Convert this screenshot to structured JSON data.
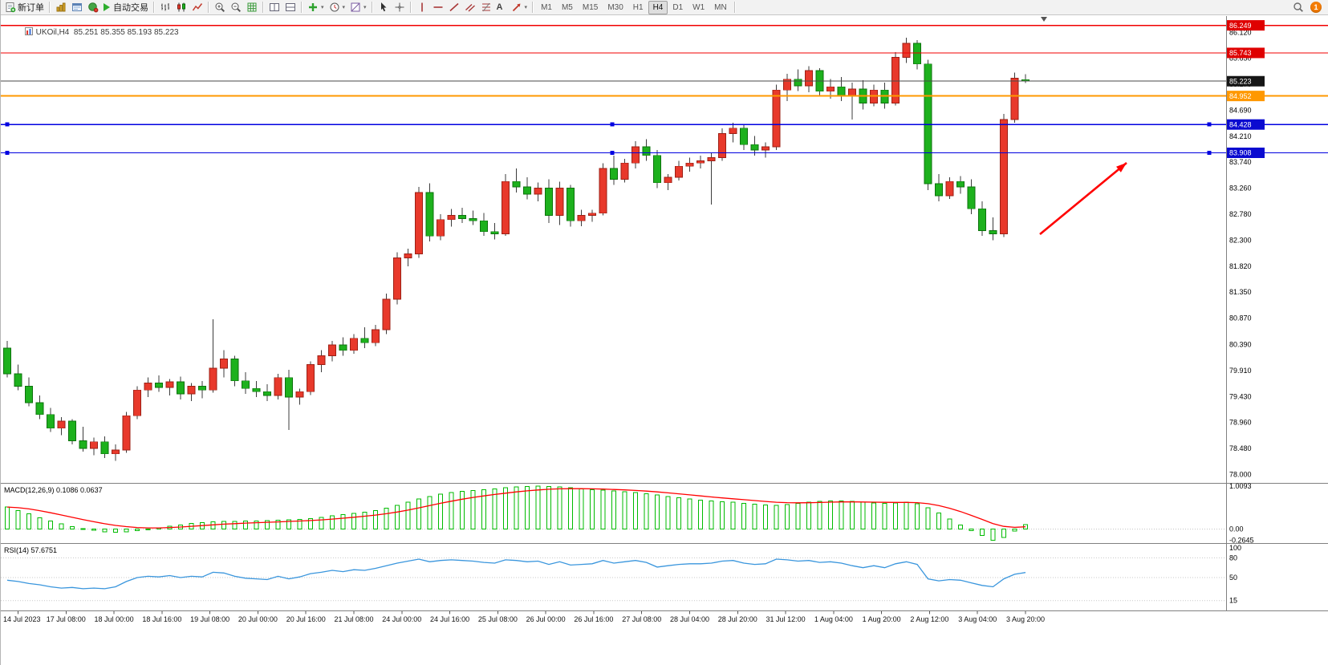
{
  "toolbar": {
    "new_order": "新订单",
    "autotrade": "自动交易",
    "timeframes": [
      "M1",
      "M5",
      "M15",
      "M30",
      "H1",
      "H4",
      "D1",
      "W1",
      "MN"
    ],
    "active_timeframe": "H4",
    "notification_count": "1"
  },
  "icons": {
    "dropdown_arrow": "▾"
  },
  "chart": {
    "header_text": "UKOil,H4  85.251 85.355 85.193 85.223"
  },
  "chart_data": {
    "type": "candlestick",
    "symbol": "UKOil",
    "timeframe": "H4",
    "ohlc_current": {
      "open": 85.251,
      "high": 85.355,
      "low": 85.193,
      "close": 85.223
    },
    "up_color": "#e8392b",
    "down_color": "#1db11d",
    "up_stroke": "#9c2015",
    "down_stroke": "#0d720d",
    "wick_color": "#3c3c3c",
    "price_axis_labels": [
      "86.120",
      "85.650",
      "85.170",
      "84.690",
      "84.210",
      "83.740",
      "83.260",
      "82.780",
      "82.300",
      "81.820",
      "81.350",
      "80.870",
      "80.390",
      "79.910",
      "79.430",
      "78.960",
      "78.480",
      "78.000"
    ],
    "x_labels": [
      "14 Jul 2023",
      "17 Jul 08:00",
      "18 Jul 00:00",
      "18 Jul 16:00",
      "19 Jul 08:00",
      "20 Jul 00:00",
      "20 Jul 16:00",
      "21 Jul 08:00",
      "24 Jul 00:00",
      "24 Jul 16:00",
      "25 Jul 08:00",
      "26 Jul 00:00",
      "26 Jul 16:00",
      "27 Jul 08:00",
      "28 Jul 04:00",
      "28 Jul 20:00",
      "31 Jul 12:00",
      "1 Aug 04:00",
      "1 Aug 20:00",
      "2 Aug 12:00",
      "3 Aug 04:00",
      "3 Aug 20:00"
    ],
    "levels": [
      {
        "price": 86.249,
        "label": "86.249",
        "color": "#f00000",
        "badge": "#df0000",
        "width": 1.4,
        "handles": false
      },
      {
        "price": 85.743,
        "label": "85.743",
        "color": "#f00000",
        "badge": "#df0000",
        "width": 1.4,
        "handles": false
      },
      {
        "price": 84.952,
        "label": "84.952",
        "color": "#ff9800",
        "badge": "#ff9800",
        "width": 2,
        "handles": false
      },
      {
        "price": 84.428,
        "label": "84.428",
        "color": "#0000e0",
        "badge": "#0a0ad0",
        "width": 1.4,
        "handles": true
      },
      {
        "price": 83.908,
        "label": "83.908",
        "color": "#0000e0",
        "badge": "#0a0ad0",
        "width": 1.4,
        "handles": true
      }
    ],
    "current_price": {
      "price": 85.223,
      "label": "85.223",
      "badge": "#161616",
      "line_color": "#4a4a4a"
    },
    "candles": [
      [
        80.32,
        80.45,
        79.78,
        79.85
      ],
      [
        79.85,
        80.02,
        79.55,
        79.62
      ],
      [
        79.62,
        79.78,
        79.25,
        79.32
      ],
      [
        79.32,
        79.45,
        79.02,
        79.1
      ],
      [
        79.1,
        79.22,
        78.78,
        78.85
      ],
      [
        78.85,
        79.05,
        78.72,
        78.98
      ],
      [
        78.98,
        79.02,
        78.55,
        78.62
      ],
      [
        78.62,
        78.88,
        78.42,
        78.48
      ],
      [
        78.48,
        78.68,
        78.35,
        78.6
      ],
      [
        78.6,
        78.7,
        78.3,
        78.38
      ],
      [
        78.38,
        78.55,
        78.25,
        78.45
      ],
      [
        78.45,
        79.15,
        78.4,
        79.08
      ],
      [
        79.08,
        79.62,
        79.02,
        79.55
      ],
      [
        79.55,
        79.78,
        79.42,
        79.68
      ],
      [
        79.68,
        79.82,
        79.52,
        79.6
      ],
      [
        79.6,
        79.75,
        79.45,
        79.7
      ],
      [
        79.7,
        79.8,
        79.38,
        79.48
      ],
      [
        79.48,
        79.68,
        79.35,
        79.62
      ],
      [
        79.62,
        79.72,
        79.4,
        79.55
      ],
      [
        79.55,
        80.85,
        79.5,
        79.95
      ],
      [
        79.95,
        80.28,
        79.78,
        80.12
      ],
      [
        80.12,
        80.18,
        79.62,
        79.72
      ],
      [
        79.72,
        79.88,
        79.48,
        79.58
      ],
      [
        79.58,
        79.72,
        79.42,
        79.52
      ],
      [
        79.52,
        79.66,
        79.35,
        79.45
      ],
      [
        79.45,
        79.85,
        79.38,
        79.78
      ],
      [
        79.78,
        79.92,
        78.82,
        79.42
      ],
      [
        79.42,
        79.58,
        79.28,
        79.52
      ],
      [
        79.52,
        80.08,
        79.46,
        80.02
      ],
      [
        80.02,
        80.28,
        79.88,
        80.18
      ],
      [
        80.18,
        80.45,
        80.08,
        80.38
      ],
      [
        80.38,
        80.52,
        80.18,
        80.28
      ],
      [
        80.28,
        80.58,
        80.22,
        80.5
      ],
      [
        80.5,
        80.7,
        80.32,
        80.42
      ],
      [
        80.42,
        80.75,
        80.36,
        80.66
      ],
      [
        80.66,
        81.32,
        80.58,
        81.22
      ],
      [
        81.22,
        82.08,
        81.12,
        81.98
      ],
      [
        81.98,
        82.15,
        81.82,
        82.05
      ],
      [
        82.05,
        83.28,
        81.98,
        83.18
      ],
      [
        83.18,
        83.35,
        82.28,
        82.38
      ],
      [
        82.38,
        82.78,
        82.3,
        82.68
      ],
      [
        82.68,
        82.88,
        82.55,
        82.76
      ],
      [
        82.76,
        82.9,
        82.62,
        82.7
      ],
      [
        82.7,
        82.85,
        82.58,
        82.66
      ],
      [
        82.66,
        82.8,
        82.38,
        82.46
      ],
      [
        82.46,
        82.62,
        82.32,
        82.42
      ],
      [
        82.42,
        83.52,
        82.38,
        83.38
      ],
      [
        83.38,
        83.62,
        83.18,
        83.28
      ],
      [
        83.28,
        83.46,
        83.05,
        83.15
      ],
      [
        83.15,
        83.36,
        83.02,
        83.26
      ],
      [
        83.26,
        83.42,
        82.62,
        82.76
      ],
      [
        82.76,
        83.38,
        82.58,
        83.26
      ],
      [
        83.26,
        83.32,
        82.55,
        82.66
      ],
      [
        82.66,
        82.86,
        82.56,
        82.76
      ],
      [
        82.76,
        82.86,
        82.64,
        82.8
      ],
      [
        82.8,
        83.72,
        82.76,
        83.62
      ],
      [
        83.62,
        83.86,
        83.32,
        83.42
      ],
      [
        83.42,
        83.8,
        83.36,
        83.72
      ],
      [
        83.72,
        84.12,
        83.62,
        84.02
      ],
      [
        84.02,
        84.16,
        83.76,
        83.86
      ],
      [
        83.86,
        83.96,
        83.26,
        83.36
      ],
      [
        83.36,
        83.52,
        83.22,
        83.46
      ],
      [
        83.46,
        83.76,
        83.4,
        83.66
      ],
      [
        83.66,
        83.82,
        83.56,
        83.72
      ],
      [
        83.72,
        83.86,
        83.62,
        83.76
      ],
      [
        83.76,
        83.9,
        82.96,
        83.82
      ],
      [
        83.82,
        84.36,
        83.76,
        84.26
      ],
      [
        84.26,
        84.46,
        84.1,
        84.36
      ],
      [
        84.36,
        84.42,
        83.96,
        84.06
      ],
      [
        84.06,
        84.22,
        83.86,
        83.96
      ],
      [
        83.96,
        84.1,
        83.82,
        84.02
      ],
      [
        84.02,
        85.16,
        83.96,
        85.06
      ],
      [
        85.06,
        85.36,
        84.86,
        85.26
      ],
      [
        85.26,
        85.44,
        85.04,
        85.14
      ],
      [
        85.14,
        85.5,
        85.02,
        85.42
      ],
      [
        85.42,
        85.46,
        84.94,
        85.04
      ],
      [
        85.04,
        85.26,
        84.9,
        85.12
      ],
      [
        85.12,
        85.3,
        84.86,
        84.96
      ],
      [
        84.96,
        85.2,
        84.52,
        85.08
      ],
      [
        85.08,
        85.24,
        84.7,
        84.82
      ],
      [
        84.82,
        85.16,
        84.76,
        85.06
      ],
      [
        85.06,
        85.2,
        84.72,
        84.82
      ],
      [
        84.82,
        85.76,
        84.78,
        85.66
      ],
      [
        85.66,
        86.02,
        85.56,
        85.92
      ],
      [
        85.92,
        85.98,
        85.44,
        85.54
      ],
      [
        85.54,
        85.62,
        83.22,
        83.34
      ],
      [
        83.34,
        83.52,
        83.02,
        83.12
      ],
      [
        83.12,
        83.46,
        83.06,
        83.38
      ],
      [
        83.38,
        83.48,
        83.16,
        83.28
      ],
      [
        83.28,
        83.42,
        82.78,
        82.88
      ],
      [
        82.88,
        83.02,
        82.38,
        82.48
      ],
      [
        82.48,
        82.72,
        82.3,
        82.42
      ],
      [
        82.42,
        84.62,
        82.36,
        84.52
      ],
      [
        84.52,
        85.38,
        84.46,
        85.28
      ],
      [
        85.251,
        85.355,
        85.193,
        85.223
      ]
    ],
    "indicators": {
      "macd": {
        "label": "MACD(12,26,9) 0.1086 0.0637",
        "main_value": 0.1086,
        "signal_value": 0.0637,
        "hist_color": "#00bb00",
        "signal_color": "#ff0000",
        "axis_labels": [
          {
            "text": "1.0093",
            "value": 1.0093
          },
          {
            "text": "0.00",
            "value": 0
          },
          {
            "text": "-0.2645",
            "value": -0.2645
          }
        ],
        "values": [
          0.52,
          0.44,
          0.36,
          0.27,
          0.19,
          0.12,
          0.06,
          0.01,
          -0.03,
          -0.06,
          -0.07,
          -0.06,
          -0.04,
          -0.01,
          0.03,
          0.07,
          0.1,
          0.13,
          0.15,
          0.17,
          0.18,
          0.18,
          0.19,
          0.19,
          0.2,
          0.21,
          0.22,
          0.23,
          0.25,
          0.28,
          0.31,
          0.34,
          0.37,
          0.4,
          0.44,
          0.49,
          0.56,
          0.63,
          0.71,
          0.77,
          0.82,
          0.86,
          0.89,
          0.91,
          0.93,
          0.95,
          0.97,
          0.99,
          1.0,
          1.0093,
          1.0,
          0.99,
          0.97,
          0.95,
          0.93,
          0.92,
          0.9,
          0.88,
          0.86,
          0.83,
          0.8,
          0.77,
          0.74,
          0.71,
          0.68,
          0.66,
          0.64,
          0.63,
          0.61,
          0.59,
          0.57,
          0.56,
          0.58,
          0.61,
          0.63,
          0.65,
          0.66,
          0.66,
          0.65,
          0.63,
          0.62,
          0.61,
          0.62,
          0.63,
          0.6,
          0.5,
          0.38,
          0.24,
          0.1,
          -0.04,
          -0.15,
          -0.2645,
          -0.2,
          -0.05,
          0.1086
        ]
      },
      "rsi": {
        "label": "RSI(14) 57.6751",
        "current_value": 57.6751,
        "line_color": "#3a96dd",
        "axis_labels": [
          {
            "text": "100",
            "value": 100
          },
          {
            "text": "80",
            "value": 80
          },
          {
            "text": "50",
            "value": 50
          },
          {
            "text": "15",
            "value": 15
          }
        ],
        "guide_levels": [
          80,
          50,
          15
        ],
        "values": [
          46,
          44,
          41,
          39,
          36,
          34,
          35,
          33,
          34,
          33,
          36,
          44,
          50,
          52,
          51,
          53,
          50,
          52,
          51,
          58,
          57,
          52,
          49,
          48,
          47,
          52,
          48,
          51,
          56,
          58,
          61,
          59,
          62,
          61,
          64,
          68,
          72,
          75,
          78,
          74,
          76,
          77,
          76,
          75,
          73,
          72,
          77,
          76,
          74,
          75,
          70,
          74,
          69,
          70,
          71,
          76,
          72,
          74,
          76,
          73,
          66,
          68,
          70,
          71,
          71,
          72,
          75,
          76,
          72,
          70,
          71,
          78,
          77,
          75,
          76,
          73,
          74,
          72,
          68,
          65,
          68,
          65,
          71,
          74,
          70,
          48,
          45,
          47,
          46,
          42,
          38,
          36,
          48,
          55,
          57.68
        ]
      }
    },
    "arrow_annotation": {
      "color": "#ff0000",
      "direction": "up-right"
    }
  }
}
